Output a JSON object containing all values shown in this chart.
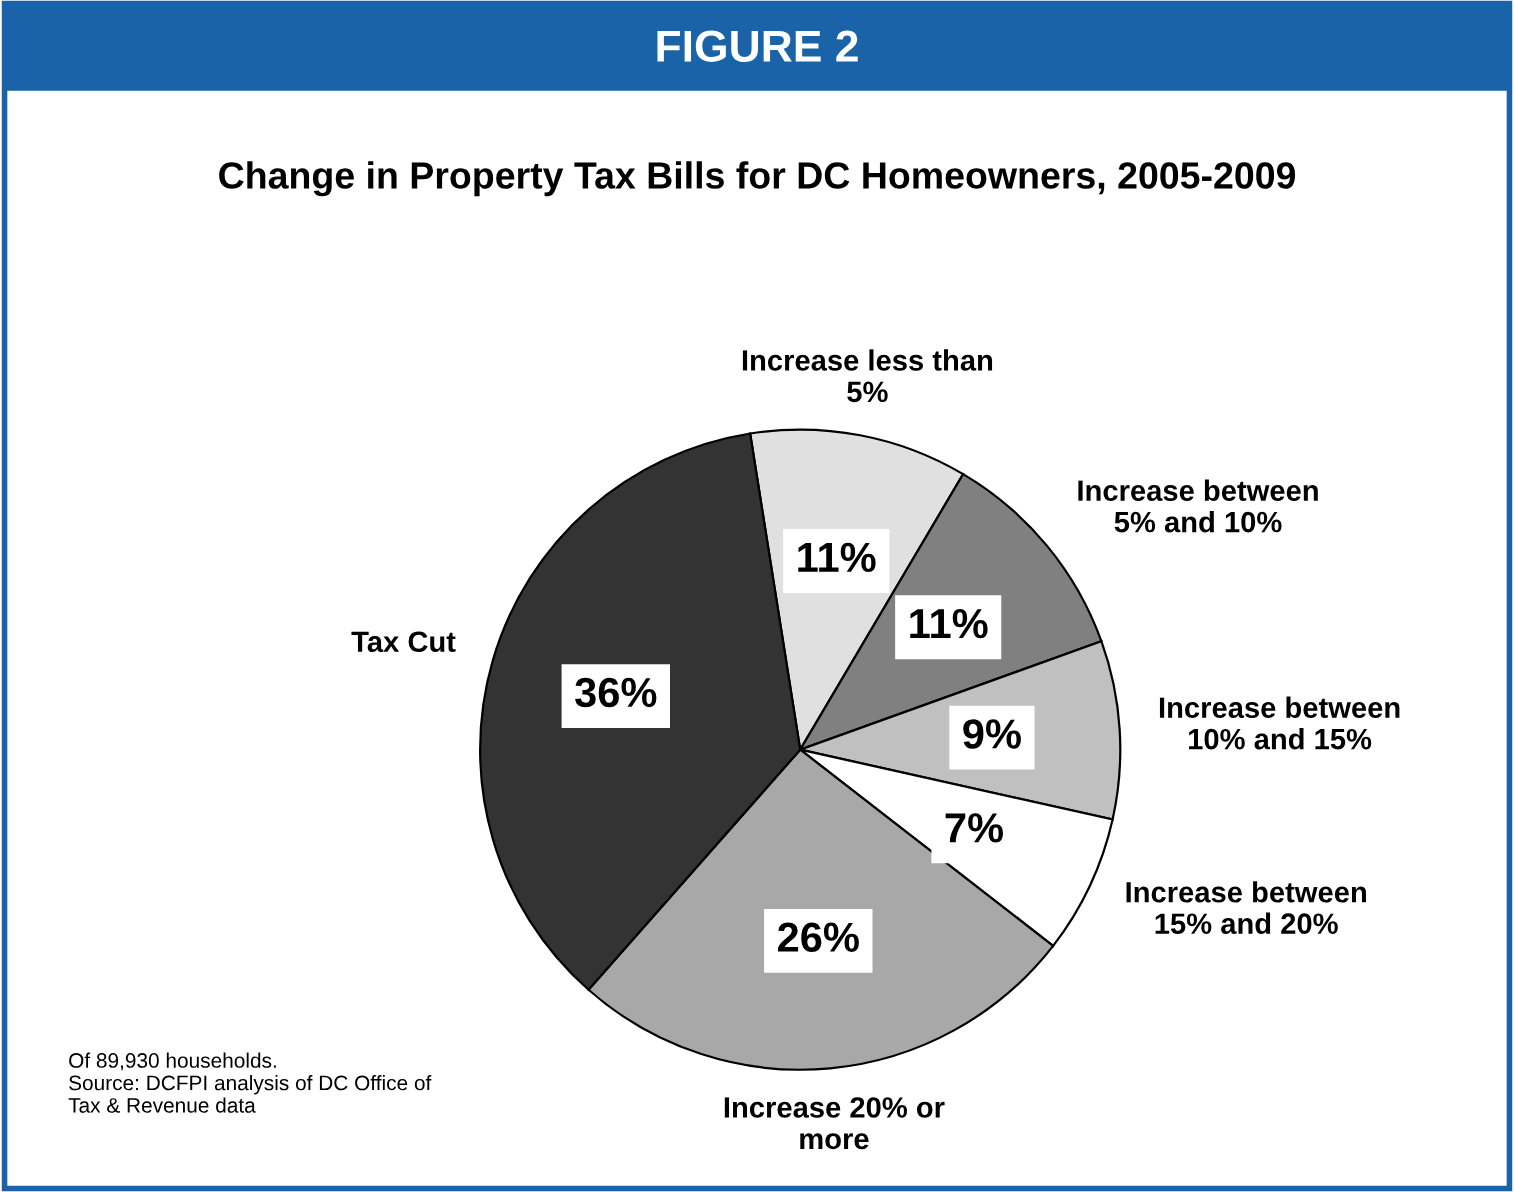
{
  "chart_data": {
    "type": "pie",
    "title": "Change in Property Tax Bills for DC Homeowners, 2005-2009",
    "subtitle": "FIGURE 2",
    "categories": [
      "Increase less than\n5%",
      "Increase between\n5% and 10%",
      "Increase between\n10% and 15%",
      "Increase between\n15% and 20%",
      "Increase 20% or\nmore",
      "Tax Cut"
    ],
    "values": [
      11,
      11,
      9,
      7,
      26,
      36
    ],
    "colors": [
      "#e0e0e0",
      "#808080",
      "#c0c0c0",
      "#ffffff",
      "#a8a8a8",
      "#333333"
    ],
    "value_labels": [
      "11%",
      "11%",
      "9%",
      "7%",
      "26%",
      "36%"
    ],
    "legend": false,
    "annotations": [
      "Of 89,930 households.\nSource: DCFPI analysis of DC Office of\nTax & Revenue data"
    ]
  }
}
